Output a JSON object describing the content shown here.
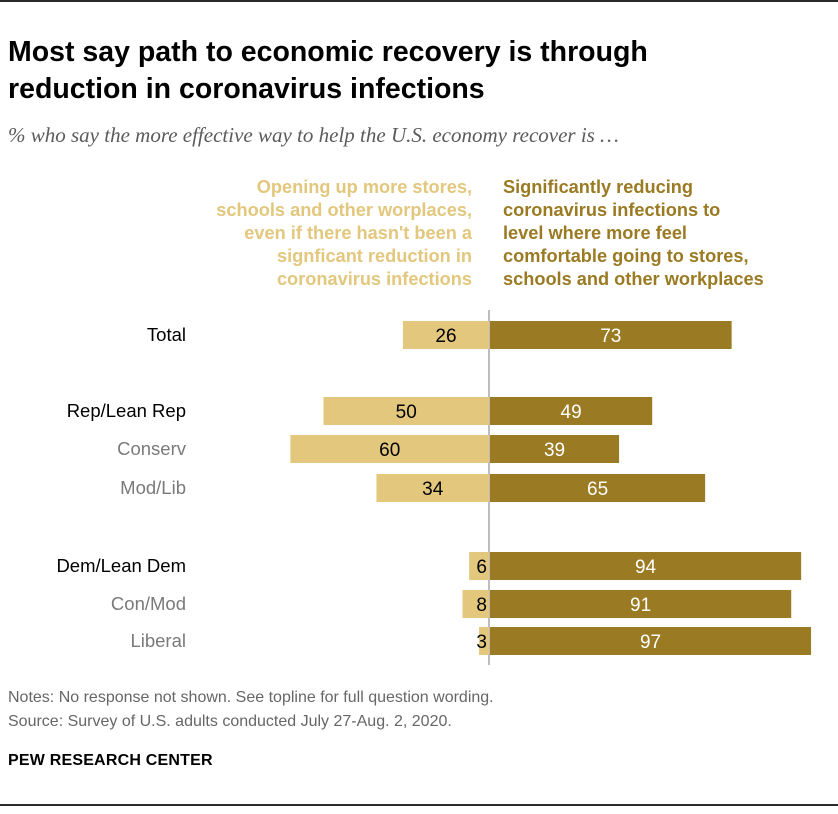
{
  "header": {
    "title_line1": "Most say path to economic recovery is through",
    "title_line2": "reduction in coronavirus infections",
    "subtitle": "% who say the more effective way to help the U.S. economy recover is …"
  },
  "legend": {
    "left_lines": [
      "Opening up more stores,",
      "schools and other worplaces,",
      "even if there hasn't been a",
      "signficant reduction in",
      "coronavirus infections"
    ],
    "right_lines": [
      "Significantly reducing",
      "coronavirus infections to",
      "level where more feel",
      "comfortable going to stores,",
      "schools and other workplaces"
    ]
  },
  "colors": {
    "opening": "#e2c77d",
    "reducing": "#9a7a22",
    "divider": "#bdbdbd",
    "label_primary": "#000000",
    "label_secondary": "#7a7a7a"
  },
  "chart_data": {
    "type": "bar",
    "orientation": "horizontal diverging",
    "categories": [
      "Total",
      "Rep/Lean Rep",
      "Conserv",
      "Mod/Lib",
      "Dem/Lean Dem",
      "Con/Mod",
      "Liberal"
    ],
    "series": [
      {
        "name": "Opening up more stores, schools and other worplaces, even if there hasn't been a signficant reduction in coronavirus infections",
        "values": [
          26,
          50,
          60,
          34,
          6,
          8,
          3
        ]
      },
      {
        "name": "Significantly reducing coronavirus infections to level where more feel comfortable going to stores, schools and other workplaces",
        "values": [
          73,
          49,
          39,
          65,
          94,
          91,
          97
        ]
      }
    ],
    "category_level": [
      "primary",
      "primary",
      "secondary",
      "secondary",
      "primary",
      "secondary",
      "secondary"
    ],
    "title": "Most say path to economic recovery is through reduction in coronavirus infections",
    "xlabel": "",
    "ylabel": "",
    "xlim": [
      -100,
      100
    ]
  },
  "footer": {
    "notes": "Notes: No response not shown. See topline for full question wording.",
    "source": "Source: Survey of U.S. adults conducted July 27-Aug. 2, 2020.",
    "brand": "PEW RESEARCH CENTER"
  }
}
